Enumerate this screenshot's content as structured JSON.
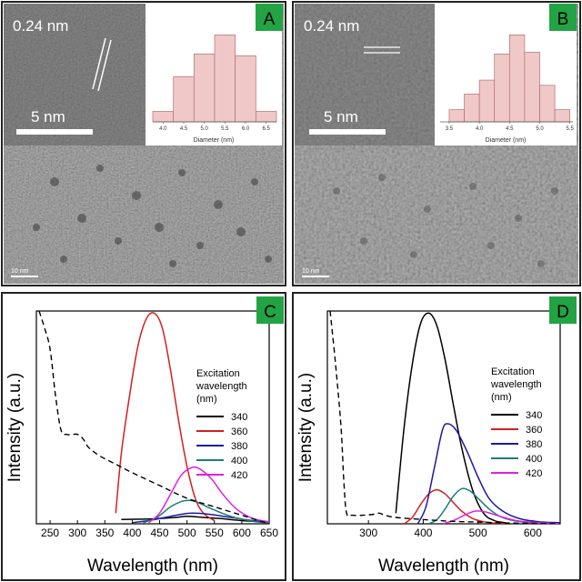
{
  "panels": {
    "A": {
      "letter": "A",
      "lattice_label": "0.24 nm",
      "hr_scale_label": "5 nm",
      "overview_scale_label": "10 nm",
      "histogram": {
        "xlabel": "Diameter (nm)",
        "x_ticks": [
          "4.0",
          "4.5",
          "5.0",
          "5.5",
          "6.0",
          "6.5"
        ],
        "bins": [
          [
            3.75,
            4.25,
            0.12
          ],
          [
            4.25,
            4.75,
            0.52
          ],
          [
            4.75,
            5.25,
            0.78
          ],
          [
            5.25,
            5.75,
            1.0
          ],
          [
            5.75,
            6.25,
            0.76
          ],
          [
            6.25,
            6.75,
            0.12
          ]
        ]
      }
    },
    "B": {
      "letter": "B",
      "lattice_label": "0.24 nm",
      "hr_scale_label": "5 nm",
      "overview_scale_label": "10 nm",
      "histogram": {
        "xlabel": "Diameter (nm)",
        "x_ticks": [
          "3.5",
          "4.0",
          "4.5",
          "5.0",
          "5.5"
        ],
        "bins": [
          [
            3.5,
            3.75,
            0.14
          ],
          [
            3.75,
            4.0,
            0.32
          ],
          [
            4.0,
            4.25,
            0.48
          ],
          [
            4.25,
            4.5,
            0.78
          ],
          [
            4.5,
            4.75,
            1.0
          ],
          [
            4.75,
            5.0,
            0.8
          ],
          [
            5.0,
            5.25,
            0.42
          ],
          [
            5.25,
            5.5,
            0.14
          ]
        ]
      }
    },
    "C": {
      "letter": "C",
      "xlabel": "Wavelength (nm)",
      "ylabel": "Intensity (a.u.)",
      "legend_title": [
        "Excitation",
        "wavelength",
        "(nm)"
      ]
    },
    "D": {
      "letter": "D",
      "xlabel": "Wavelength (nm)",
      "ylabel": "Intensity (a.u.)",
      "legend_title": [
        "Excitation",
        "wavelength",
        "(nm)"
      ]
    }
  },
  "colors": {
    "badge": "#22a344",
    "hist_fill": "#f0c8c8",
    "hist_stroke": "#b07070",
    "ex340": "#000000",
    "ex360": "#d42020",
    "ex380": "#1a1aa0",
    "ex400": "#1b7d78",
    "ex420": "#e020e0",
    "absorption": "#000000"
  },
  "chart_data": [
    {
      "type": "line",
      "panel": "C",
      "xlabel": "Wavelength (nm)",
      "ylabel": "Intensity (a.u.)",
      "x_ticks": [
        250,
        300,
        350,
        400,
        450,
        500,
        550,
        600,
        650
      ],
      "xlim": [
        225,
        650
      ],
      "ylim": [
        0,
        1
      ],
      "legend": "right",
      "series": [
        {
          "name": "340",
          "style": "solid",
          "color": "#000000",
          "x": [
            380,
            420,
            450,
            480,
            500,
            530,
            560,
            600,
            650
          ],
          "y": [
            0.02,
            0.022,
            0.025,
            0.03,
            0.035,
            0.03,
            0.025,
            0.015,
            0.008
          ]
        },
        {
          "name": "360",
          "style": "solid",
          "color": "#d42020",
          "x": [
            370,
            380,
            395,
            410,
            425,
            440,
            455,
            470,
            485,
            500,
            515,
            530,
            550
          ],
          "y": [
            0.05,
            0.33,
            0.6,
            0.83,
            0.96,
            0.99,
            0.92,
            0.72,
            0.48,
            0.27,
            0.12,
            0.05,
            0.015
          ]
        },
        {
          "name": "380",
          "style": "solid",
          "color": "#1a1aa0",
          "x": [
            400,
            430,
            460,
            490,
            510,
            540,
            580,
            620,
            650
          ],
          "y": [
            0.005,
            0.015,
            0.03,
            0.045,
            0.05,
            0.045,
            0.03,
            0.015,
            0.008
          ]
        },
        {
          "name": "400",
          "style": "solid",
          "color": "#1b7d78",
          "x": [
            420,
            445,
            470,
            490,
            505,
            520,
            545,
            580,
            620,
            650
          ],
          "y": [
            0.005,
            0.03,
            0.08,
            0.105,
            0.11,
            0.1,
            0.07,
            0.035,
            0.012,
            0.005
          ]
        },
        {
          "name": "420",
          "style": "solid",
          "color": "#e020e0",
          "x": [
            430,
            450,
            470,
            490,
            510,
            525,
            545,
            565,
            590,
            620,
            650
          ],
          "y": [
            0.005,
            0.05,
            0.14,
            0.23,
            0.265,
            0.255,
            0.21,
            0.14,
            0.07,
            0.025,
            0.01
          ]
        },
        {
          "name": "absorption",
          "style": "dashed",
          "color": "#000000",
          "x": [
            230,
            240,
            250,
            260,
            270,
            280,
            290,
            300,
            310,
            320,
            340,
            370,
            400,
            450,
            500,
            550,
            600,
            650
          ],
          "y": [
            1.0,
            0.92,
            0.82,
            0.6,
            0.44,
            0.42,
            0.42,
            0.42,
            0.4,
            0.36,
            0.32,
            0.28,
            0.24,
            0.18,
            0.12,
            0.08,
            0.04,
            0.0
          ]
        }
      ]
    },
    {
      "type": "line",
      "panel": "D",
      "xlabel": "Wavelength (nm)",
      "ylabel": "Intensity (a.u.)",
      "x_ticks": [
        300,
        400,
        500,
        600
      ],
      "xlim": [
        225,
        650
      ],
      "ylim": [
        0,
        1
      ],
      "legend": "right",
      "series": [
        {
          "name": "340",
          "style": "solid",
          "color": "#000000",
          "x": [
            350,
            365,
            380,
            395,
            410,
            425,
            440,
            455,
            470,
            490,
            510,
            530,
            550
          ],
          "y": [
            0.05,
            0.45,
            0.75,
            0.94,
            0.99,
            0.93,
            0.77,
            0.56,
            0.36,
            0.16,
            0.05,
            0.015,
            0.005
          ]
        },
        {
          "name": "360",
          "style": "solid",
          "color": "#d42020",
          "x": [
            365,
            380,
            395,
            410,
            425,
            440,
            455,
            470,
            490,
            510,
            530,
            550
          ],
          "y": [
            0.0,
            0.03,
            0.09,
            0.14,
            0.16,
            0.14,
            0.1,
            0.06,
            0.025,
            0.01,
            0.003,
            0.0
          ]
        },
        {
          "name": "380",
          "style": "solid",
          "color": "#1a1aa0",
          "x": [
            390,
            405,
            420,
            435,
            445,
            460,
            480,
            500,
            520,
            545,
            575,
            610,
            650
          ],
          "y": [
            0.0,
            0.08,
            0.26,
            0.44,
            0.47,
            0.44,
            0.34,
            0.22,
            0.12,
            0.06,
            0.025,
            0.01,
            0.005
          ]
        },
        {
          "name": "400",
          "style": "solid",
          "color": "#1b7d78",
          "x": [
            410,
            425,
            440,
            455,
            470,
            485,
            500,
            520,
            540,
            565,
            600,
            650
          ],
          "y": [
            0.0,
            0.02,
            0.07,
            0.13,
            0.165,
            0.155,
            0.12,
            0.07,
            0.035,
            0.015,
            0.005,
            0.0
          ]
        },
        {
          "name": "420",
          "style": "solid",
          "color": "#e020e0",
          "x": [
            435,
            455,
            475,
            495,
            515,
            540,
            570,
            610,
            650
          ],
          "y": [
            0.0,
            0.015,
            0.04,
            0.06,
            0.055,
            0.035,
            0.015,
            0.005,
            0.0
          ]
        },
        {
          "name": "absorption",
          "style": "dashed",
          "color": "#000000",
          "x": [
            230,
            240,
            250,
            255,
            260,
            270,
            290,
            310,
            320,
            330,
            350,
            400,
            450,
            500,
            550,
            600,
            650
          ],
          "y": [
            1.0,
            0.75,
            0.45,
            0.2,
            0.05,
            0.04,
            0.04,
            0.045,
            0.05,
            0.04,
            0.03,
            0.02,
            0.012,
            0.008,
            0.004,
            0.002,
            0.0
          ]
        }
      ]
    }
  ]
}
